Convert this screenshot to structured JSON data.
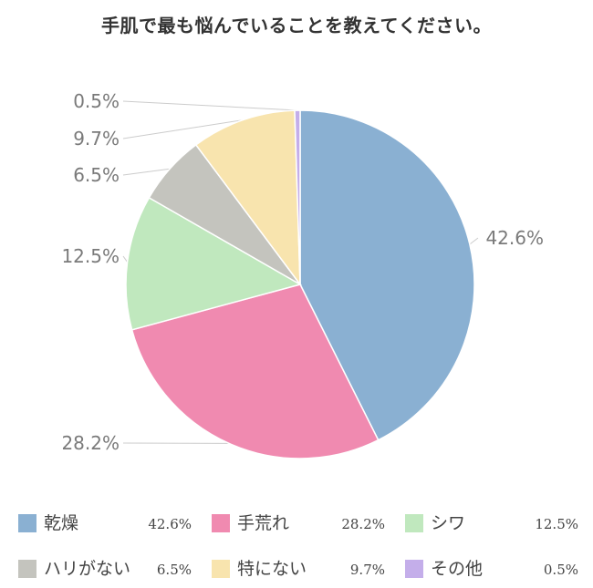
{
  "chart_data": {
    "type": "pie",
    "title": "手肌で最も悩んでいることを教えてください。",
    "slices": [
      {
        "label": "乾燥",
        "value": 42.6,
        "display": "42.6%",
        "color": "#8AB0D2"
      },
      {
        "label": "手荒れ",
        "value": 28.2,
        "display": "28.2%",
        "color": "#F08AB0"
      },
      {
        "label": "シワ",
        "value": 12.5,
        "display": "12.5%",
        "color": "#C0E8BE"
      },
      {
        "label": "ハリがない",
        "value": 6.5,
        "display": "6.5%",
        "color": "#C4C4BE"
      },
      {
        "label": "特にない",
        "value": 9.7,
        "display": "9.7%",
        "color": "#F8E4AE"
      },
      {
        "label": "その他",
        "value": 0.5,
        "display": "0.5%",
        "color": "#C4AEEA"
      }
    ],
    "direction": "clockwise",
    "start": "top",
    "legend_position": "bottom",
    "leader_line_color": "#cccccc"
  }
}
